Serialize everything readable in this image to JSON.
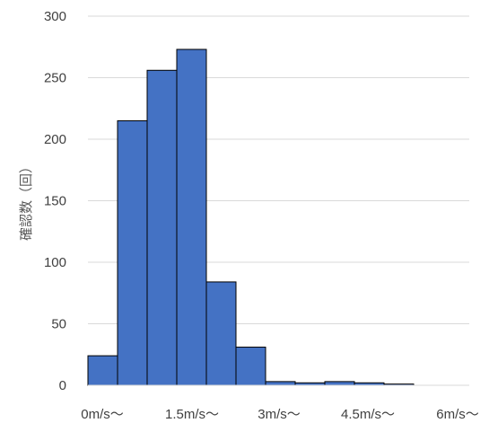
{
  "chart_data": {
    "type": "bar",
    "ylabel": "確認数（回）",
    "ylim": [
      0,
      300
    ],
    "y_ticks": [
      "0",
      "50",
      "100",
      "150",
      "200",
      "250",
      "300"
    ],
    "x_tick_labels": [
      "0m/s〜",
      "1.5m/s〜",
      "3m/s〜",
      "4.5m/s〜",
      "6m/s〜"
    ],
    "bin_count": 13,
    "values": [
      24,
      215,
      256,
      273,
      84,
      31,
      3,
      2,
      3,
      2,
      1,
      0,
      0
    ],
    "bar_color": "#4472C4",
    "bar_edge_color": "#000000",
    "grid": true
  }
}
